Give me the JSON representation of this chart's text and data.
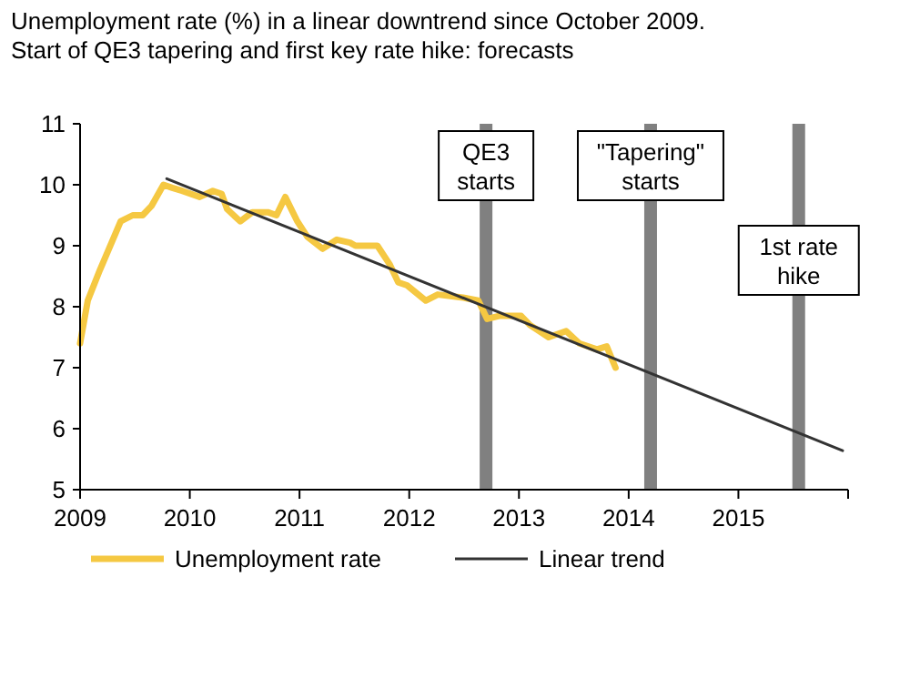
{
  "chart_data": {
    "type": "line",
    "title": "Unemployment rate (%) in a linear downtrend since October 2009.",
    "subtitle": "Start of QE3 tapering and first key rate hike: forecasts",
    "xlim": [
      2009,
      2016
    ],
    "xticks": [
      2009,
      2010,
      2011,
      2012,
      2013,
      2014,
      2015,
      {
        "value": 2016,
        "label": null
      }
    ],
    "ylim": [
      5,
      11
    ],
    "yticks": [
      5,
      6,
      7,
      8,
      9,
      10,
      11
    ],
    "grid": false,
    "legend": "bottom",
    "series": [
      {
        "name": "Unemployment rate",
        "color": "#f5c842",
        "x": [
          2009.0,
          2009.07,
          2009.18,
          2009.37,
          2009.48,
          2009.57,
          2009.65,
          2009.76,
          2009.84,
          2009.93,
          2010.09,
          2010.21,
          2010.29,
          2010.34,
          2010.46,
          2010.57,
          2010.71,
          2010.79,
          2010.87,
          2010.98,
          2011.07,
          2011.21,
          2011.34,
          2011.46,
          2011.51,
          2011.71,
          2011.82,
          2011.9,
          2011.98,
          2012.15,
          2012.26,
          2012.49,
          2012.63,
          2012.71,
          2012.82,
          2013.02,
          2013.1,
          2013.27,
          2013.43,
          2013.55,
          2013.71,
          2013.8,
          2013.88
        ],
        "values": [
          7.4,
          8.1,
          8.6,
          9.4,
          9.5,
          9.5,
          9.65,
          10.0,
          9.95,
          9.9,
          9.8,
          9.9,
          9.85,
          9.6,
          9.4,
          9.55,
          9.55,
          9.5,
          9.8,
          9.4,
          9.15,
          8.95,
          9.1,
          9.05,
          9.0,
          9.0,
          8.7,
          8.4,
          8.35,
          8.1,
          8.2,
          8.15,
          8.1,
          7.8,
          7.85,
          7.85,
          7.7,
          7.5,
          7.6,
          7.4,
          7.3,
          7.35,
          7.0
        ]
      },
      {
        "name": "Linear trend",
        "color": "#333333",
        "x": [
          2009.79,
          2015.95
        ],
        "values": [
          10.1,
          5.64
        ]
      }
    ],
    "ref_lines": [
      {
        "axis": "x",
        "value": 2012.7,
        "label": "QE3\nstarts",
        "color": "#808080"
      },
      {
        "axis": "x",
        "value": 2014.2,
        "label": "\"Tapering\"\nstarts",
        "color": "#808080"
      },
      {
        "axis": "x",
        "value": 2015.55,
        "label": "1st rate\nhike",
        "color": "#808080"
      }
    ]
  }
}
